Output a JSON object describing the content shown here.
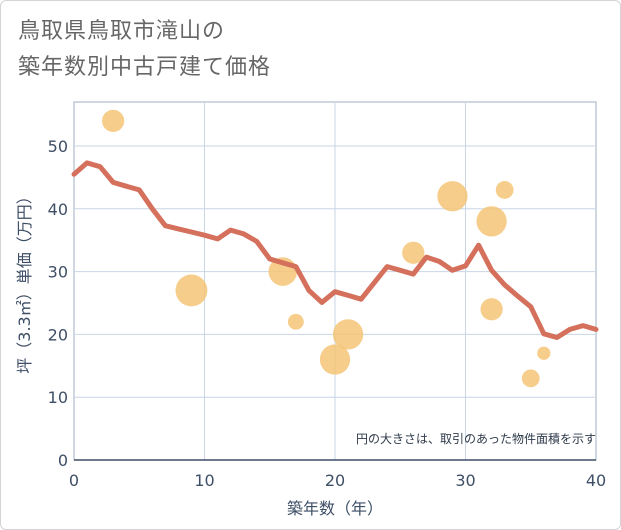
{
  "title_line1": "鳥取県鳥取市滝山の",
  "title_line2": "築年数別中古戸建て価格",
  "chart_data": {
    "type": "line+scatter",
    "xlabel": "築年数（年）",
    "ylabel": "坪（3.3㎡）単価（万円）",
    "xlim": [
      0,
      40
    ],
    "ylim": [
      0,
      57
    ],
    "xticks": [
      0,
      10,
      20,
      30,
      40
    ],
    "yticks": [
      0,
      10,
      20,
      30,
      40,
      50
    ],
    "grid": true,
    "note": "円の大きさは、取引のあった物件面積を示す",
    "colors": {
      "line": "#d4705c",
      "bubble": "#f5c475",
      "grid": "#c8d6e5"
    },
    "line": {
      "x": [
        0,
        1,
        2,
        3,
        4,
        5,
        6,
        7,
        8,
        9,
        10,
        11,
        12,
        13,
        14,
        15,
        16,
        17,
        18,
        19,
        20,
        21,
        22,
        23,
        24,
        25,
        26,
        27,
        28,
        29,
        30,
        31,
        32,
        33,
        34,
        35,
        36,
        37,
        38,
        39,
        40
      ],
      "y": [
        45.5,
        47.3,
        46.7,
        44.2,
        43.6,
        43.0,
        40.0,
        37.3,
        36.8,
        36.3,
        35.8,
        35.2,
        36.6,
        36.0,
        34.8,
        32.0,
        31.4,
        30.8,
        27.0,
        25.1,
        26.8,
        26.2,
        25.6,
        28.2,
        30.8,
        30.2,
        29.6,
        32.3,
        31.6,
        30.2,
        30.9,
        34.2,
        30.2,
        27.9,
        26.1,
        24.4,
        20.1,
        19.5,
        20.8,
        21.4,
        20.8
      ]
    },
    "bubbles": [
      {
        "x": 3,
        "y": 54.0,
        "size": 3
      },
      {
        "x": 9,
        "y": 27.0,
        "size": 8
      },
      {
        "x": 16,
        "y": 30.0,
        "size": 6
      },
      {
        "x": 17,
        "y": 22.0,
        "size": 1
      },
      {
        "x": 20,
        "y": 16.0,
        "size": 7
      },
      {
        "x": 21,
        "y": 20.0,
        "size": 7
      },
      {
        "x": 26,
        "y": 33.0,
        "size": 3
      },
      {
        "x": 29,
        "y": 42.0,
        "size": 7
      },
      {
        "x": 32,
        "y": 38.0,
        "size": 7
      },
      {
        "x": 32,
        "y": 24.0,
        "size": 3
      },
      {
        "x": 33,
        "y": 43.0,
        "size": 1.5
      },
      {
        "x": 35,
        "y": 13.0,
        "size": 1.5
      },
      {
        "x": 36,
        "y": 17.0,
        "size": 0.5
      }
    ]
  }
}
